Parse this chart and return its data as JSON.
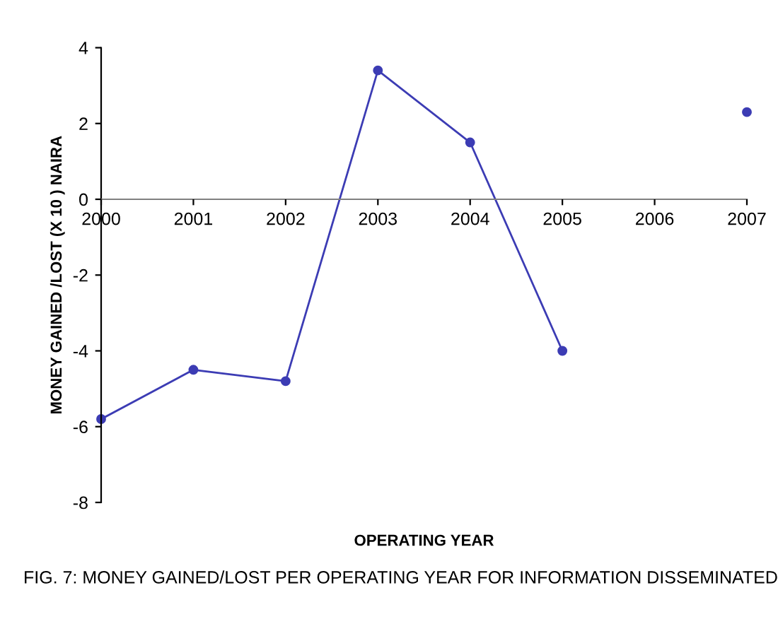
{
  "chart_data": {
    "type": "line",
    "xlabel": "OPERATING YEAR",
    "ylabel": "MONEY GAINED /LOST (X 10 ) NAIRA",
    "x": [
      2000,
      2001,
      2002,
      2003,
      2004,
      2005,
      2006,
      2007
    ],
    "series": [
      {
        "color": "#3c3cb4",
        "values": [
          -5.8,
          -4.5,
          -4.8,
          3.4,
          1.5,
          -4.0,
          null,
          2.3
        ]
      }
    ],
    "xlim": [
      2000,
      2007
    ],
    "xticks": [
      2000,
      2001,
      2002,
      2003,
      2004,
      2005,
      2006,
      2007
    ],
    "ylim": [
      -8,
      4
    ],
    "yticks": [
      -8,
      -6,
      -4,
      -2,
      0,
      2,
      4
    ],
    "marker": "circle",
    "line_style": "solid",
    "grid": false,
    "legend": false,
    "annotations": [
      "FIG. 7: MONEY GAINED/LOST PER OPERATING YEAR FOR INFORMATION DISSEMINATED"
    ]
  }
}
